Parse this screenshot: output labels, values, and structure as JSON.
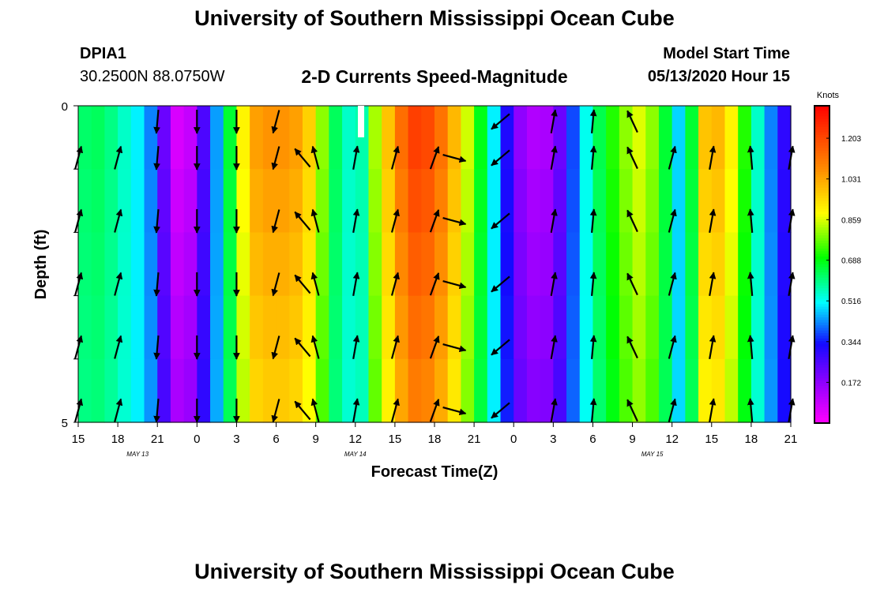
{
  "page": {
    "title": "University of Southern Mississippi Ocean Cube",
    "footer_title": "University of Southern Mississippi Ocean Cube"
  },
  "header": {
    "station": "DPIA1",
    "coords": "30.2500N 88.0750W",
    "subtitle": "2-D Currents Speed-Magnitude",
    "model_label": "Model Start Time",
    "model_time": "05/13/2020 Hour 15"
  },
  "chart_data": {
    "type": "heatmap",
    "title": "2-D Currents Speed-Magnitude",
    "xlabel": "Forecast Time(Z)",
    "ylabel": "Depth (ft)",
    "x_hours": [
      0,
      54
    ],
    "y_range": [
      0,
      5
    ],
    "x_tick_labels": [
      "15",
      "18",
      "21",
      "0",
      "3",
      "6",
      "9",
      "12",
      "15",
      "18",
      "21",
      "0",
      "3",
      "6",
      "9",
      "12",
      "15",
      "18",
      "21"
    ],
    "y_tick_labels": [
      "0",
      "5"
    ],
    "date_labels": [
      {
        "text": "MAY 13",
        "hour": 4.5
      },
      {
        "text": "MAY 14",
        "hour": 21
      },
      {
        "text": "MAY 15",
        "hour": 43.5
      }
    ],
    "colorbar": {
      "label": "Knots",
      "range": [
        0.0,
        1.34
      ],
      "ticks": [
        "1.203",
        "1.031",
        "0.859",
        "0.688",
        "0.516",
        "0.344",
        "0.172"
      ],
      "tick_values": [
        1.203,
        1.031,
        0.859,
        0.688,
        0.516,
        0.344,
        0.172
      ]
    },
    "speed_by_hour": [
      0.62,
      0.63,
      0.6,
      0.55,
      0.5,
      0.42,
      0.22,
      0.06,
      0.09,
      0.26,
      0.44,
      0.66,
      0.9,
      1.04,
      1.06,
      1.06,
      1.04,
      0.96,
      0.8,
      0.63,
      0.55,
      0.57,
      0.82,
      0.98,
      1.13,
      1.22,
      1.2,
      1.12,
      1.0,
      0.85,
      0.68,
      0.5,
      0.32,
      0.17,
      0.12,
      0.13,
      0.22,
      0.38,
      0.52,
      0.64,
      0.72,
      0.8,
      0.86,
      0.8,
      0.66,
      0.48,
      0.66,
      0.98,
      1.0,
      0.9,
      0.72,
      0.55,
      0.42,
      0.3,
      0.2
    ],
    "depth_rows": 5,
    "vectors_direction_deg": [
      {
        "hour": 0,
        "deg": 15
      },
      {
        "hour": 3,
        "deg": 15
      },
      {
        "hour": 6,
        "deg": 185
      },
      {
        "hour": 9,
        "deg": 180
      },
      {
        "hour": 12,
        "deg": 180
      },
      {
        "hour": 15,
        "deg": 195
      },
      {
        "hour": 17,
        "deg": 320
      },
      {
        "hour": 18,
        "deg": 345
      },
      {
        "hour": 21,
        "deg": 10
      },
      {
        "hour": 24,
        "deg": 15
      },
      {
        "hour": 27,
        "deg": 20
      },
      {
        "hour": 28.5,
        "deg": 105
      },
      {
        "hour": 32,
        "deg": 230
      },
      {
        "hour": 36,
        "deg": 10
      },
      {
        "hour": 39,
        "deg": 5
      },
      {
        "hour": 42,
        "deg": 335
      },
      {
        "hour": 45,
        "deg": 15
      },
      {
        "hour": 48,
        "deg": 10
      },
      {
        "hour": 51,
        "deg": 355
      },
      {
        "hour": 54,
        "deg": 10
      }
    ]
  }
}
